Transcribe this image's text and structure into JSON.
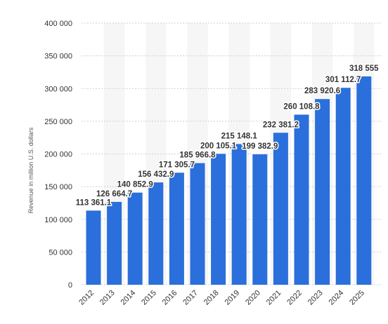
{
  "chart_data": {
    "type": "bar",
    "title": "",
    "xlabel": "",
    "ylabel": "Revenue in million U.S. dollars",
    "ylim": [
      0,
      400000
    ],
    "yticks": [
      0,
      50000,
      100000,
      150000,
      200000,
      250000,
      300000,
      350000,
      400000
    ],
    "ytick_labels": [
      "0",
      "50 000",
      "100 000",
      "150 000",
      "200 000",
      "250 000",
      "300 000",
      "350 000",
      "400 000"
    ],
    "grid": "horizontal dotted",
    "bar_color": "#2a6fdb",
    "categories": [
      "2012",
      "2013",
      "2014",
      "2015",
      "2016",
      "2017",
      "2018",
      "2019",
      "2020",
      "2021",
      "2022",
      "2023",
      "2024",
      "2025"
    ],
    "values": [
      113361.1,
      126664.7,
      140852.9,
      156432.9,
      171305.7,
      185966.8,
      200105.1,
      215148.1,
      199382.9,
      232381.2,
      260108.8,
      283920.6,
      301112.7,
      318555
    ],
    "value_labels": [
      "113 361.1",
      "126 664.7",
      "140 852.9",
      "156 432.9",
      "171 305.7",
      "185 966.8",
      "200 105.1",
      "215 148.1",
      "199 382.9",
      "232 381.2",
      "260 108.8",
      "283 920.6",
      "301 112.7",
      "318 555"
    ]
  }
}
